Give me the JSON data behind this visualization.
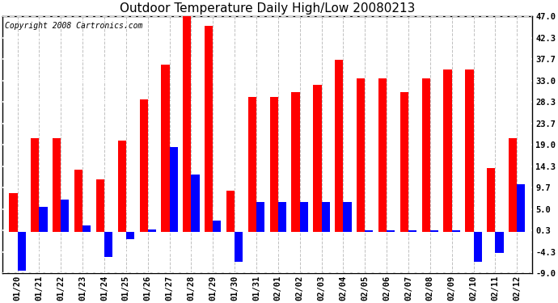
{
  "title": "Outdoor Temperature Daily High/Low 20080213",
  "copyright": "Copyright 2008 Cartronics.com",
  "dates": [
    "01/20",
    "01/21",
    "01/22",
    "01/23",
    "01/24",
    "01/25",
    "01/26",
    "01/27",
    "01/28",
    "01/29",
    "01/30",
    "01/31",
    "02/01",
    "02/02",
    "02/03",
    "02/04",
    "02/05",
    "02/06",
    "02/07",
    "02/08",
    "02/09",
    "02/10",
    "02/11",
    "02/12"
  ],
  "highs": [
    8.5,
    20.5,
    20.5,
    13.5,
    11.5,
    20.0,
    29.0,
    36.5,
    47.0,
    45.0,
    9.0,
    29.5,
    29.5,
    30.5,
    32.0,
    37.5,
    33.5,
    33.5,
    30.5,
    33.5,
    35.5,
    35.5,
    14.0,
    20.5
  ],
  "lows": [
    -8.5,
    5.5,
    7.0,
    1.5,
    -5.5,
    -1.5,
    0.5,
    18.5,
    12.5,
    2.5,
    -6.5,
    6.5,
    6.5,
    6.5,
    6.5,
    6.5,
    0.3,
    0.3,
    0.3,
    0.3,
    0.3,
    -6.5,
    -4.5,
    10.5
  ],
  "high_color": "#ff0000",
  "low_color": "#0000ff",
  "bg_color": "#ffffff",
  "yticks": [
    47.0,
    42.3,
    37.7,
    33.0,
    28.3,
    23.7,
    19.0,
    14.3,
    9.7,
    5.0,
    0.3,
    -4.3,
    -9.0
  ],
  "ylim": [
    -9.0,
    47.0
  ],
  "bar_width": 0.38,
  "title_fontsize": 11,
  "tick_fontsize": 7.5,
  "copyright_fontsize": 7
}
